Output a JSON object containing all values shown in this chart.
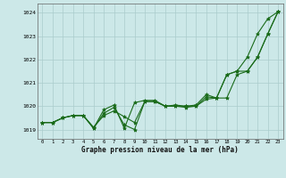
{
  "title": "Graphe pression niveau de la mer (hPa)",
  "bg_color": "#cce8e8",
  "grid_color": "#aacccc",
  "line_color": "#1a6b1a",
  "marker_color": "#1a6b1a",
  "xlim": [
    -0.5,
    23.5
  ],
  "ylim": [
    1018.6,
    1024.4
  ],
  "yticks": [
    1019,
    1020,
    1021,
    1022,
    1023,
    1024
  ],
  "xticks": [
    0,
    1,
    2,
    3,
    4,
    5,
    6,
    7,
    8,
    9,
    10,
    11,
    12,
    13,
    14,
    15,
    16,
    17,
    18,
    19,
    20,
    21,
    22,
    23
  ],
  "series1": [
    1019.3,
    1019.3,
    1019.5,
    1019.6,
    1019.6,
    1019.1,
    1019.6,
    1019.8,
    1019.55,
    1019.3,
    1020.2,
    1020.2,
    1020.0,
    1020.05,
    1020.0,
    1020.05,
    1020.5,
    1020.35,
    1021.35,
    1021.5,
    1022.1,
    1023.1,
    1023.75,
    1024.05
  ],
  "series2": [
    1019.3,
    1019.3,
    1019.5,
    1019.6,
    1019.6,
    1019.05,
    1019.85,
    1020.05,
    1019.05,
    1020.15,
    1020.25,
    1020.25,
    1020.0,
    1020.0,
    1020.0,
    1020.0,
    1020.3,
    1020.35,
    1020.35,
    1021.35,
    1021.5,
    1022.1,
    1023.1,
    1024.05
  ],
  "series3": [
    1019.3,
    1019.3,
    1019.5,
    1019.6,
    1019.6,
    1019.05,
    1019.7,
    1019.95,
    1019.2,
    1019.0,
    1020.2,
    1020.2,
    1020.0,
    1020.0,
    1019.95,
    1020.0,
    1020.4,
    1020.35,
    1021.35,
    1021.5,
    1021.5,
    1022.1,
    1023.1,
    1024.05
  ]
}
